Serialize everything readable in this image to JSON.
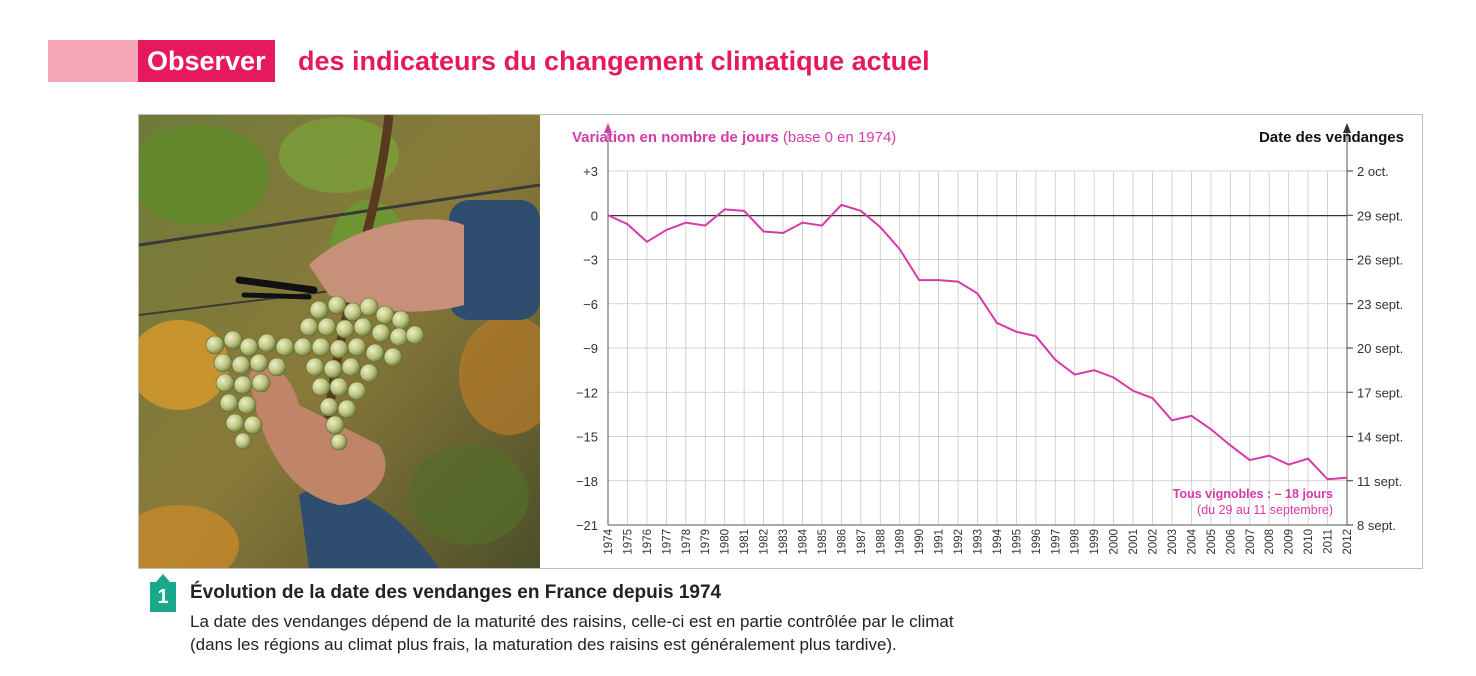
{
  "header": {
    "tag": "Observer",
    "title": "des indicateurs du changement climatique actuel",
    "tag_color": "#e6195f",
    "bar_color": "#f7a8b8"
  },
  "photo": {
    "icon": "grape-harvest-photo"
  },
  "chart_data": {
    "type": "line",
    "ylabel_bold": "Variation en nombre de jours",
    "ylabel_normal": " (base 0 en 1974)",
    "ylabel_right": "Date des vendanges",
    "ylim": [
      -21,
      3
    ],
    "yticks": [
      "+3",
      "0",
      "−3",
      "−6",
      "−9",
      "−12",
      "−15",
      "−18",
      "−21"
    ],
    "yticks_right": [
      "2 oct.",
      "29 sept.",
      "26 sept.",
      "23 sept.",
      "20 sept.",
      "17 sept.",
      "14 sept.",
      "11 sept.",
      "8 sept."
    ],
    "x": [
      1974,
      1975,
      1976,
      1977,
      1978,
      1979,
      1980,
      1981,
      1982,
      1983,
      1984,
      1985,
      1986,
      1987,
      1988,
      1989,
      1990,
      1991,
      1992,
      1993,
      1994,
      1995,
      1996,
      1997,
      1998,
      1999,
      2000,
      2001,
      2002,
      2003,
      2004,
      2005,
      2006,
      2007,
      2008,
      2009,
      2010,
      2011,
      2012
    ],
    "series": [
      {
        "values": [
          0,
          -0.6,
          -1.8,
          -1.0,
          -0.5,
          -0.7,
          0.4,
          0.3,
          -1.1,
          -1.2,
          -0.5,
          -0.7,
          0.7,
          0.3,
          -0.8,
          -2.3,
          -4.4,
          -4.4,
          -4.5,
          -5.3,
          -7.3,
          -7.9,
          -8.2,
          -9.8,
          -10.8,
          -10.5,
          -11.0,
          -11.9,
          -12.4,
          -13.9,
          -13.6,
          -14.5,
          -15.6,
          -16.6,
          -16.3,
          -16.9,
          -16.5,
          -17.9,
          -17.8
        ],
        "color": "#d63aa8"
      }
    ],
    "annotation_line1": "Tous vignobles : – 18 jours",
    "annotation_line2": "(du 29 au 11 septembre)",
    "grid": true,
    "accent_color": "#d63aa8"
  },
  "caption": {
    "number": "1",
    "title": "Évolution de la date des vendanges en France depuis 1974",
    "text_line1": "La date des vendanges dépend de la maturité des raisins, celle-ci est en partie contrôlée par le climat",
    "text_line2": "(dans les régions au climat plus frais, la maturation des raisins est généralement plus tardive)."
  }
}
